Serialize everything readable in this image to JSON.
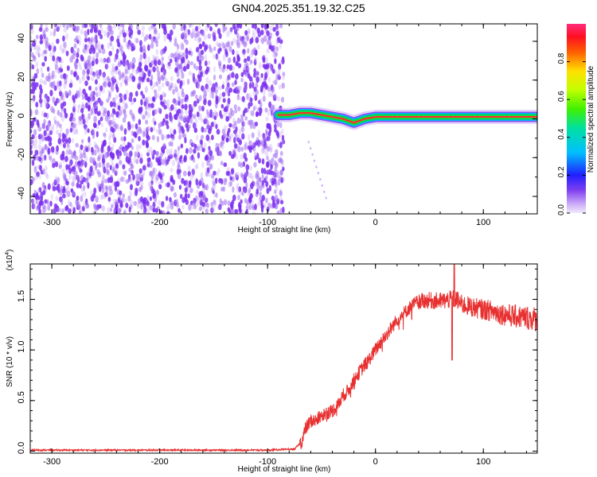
{
  "title": "GN04.2025.351.19.32.C25",
  "colors": {
    "signal_low": "#7a2cf0",
    "signal_mid": "#00d000",
    "signal_high": "#ff2020",
    "snr_line": "#e83030"
  },
  "chart_data": [
    {
      "type": "heatmap",
      "name": "spectrogram",
      "xlabel": "Height of straight line (km)",
      "ylabel": "Frequency (Hz)",
      "xlim": [
        -320,
        150
      ],
      "ylim": [
        -49,
        49
      ],
      "xticks": [
        -300,
        -200,
        -100,
        0,
        100
      ],
      "yticks": [
        -40,
        -20,
        0,
        20,
        40
      ],
      "noise_region_x": [
        -320,
        -85
      ],
      "ridge": {
        "x": [
          -90,
          -80,
          -70,
          -60,
          -50,
          -40,
          -30,
          -20,
          -10,
          0,
          20,
          40,
          60,
          80,
          100,
          120,
          140,
          150
        ],
        "y": [
          2,
          2,
          3,
          3,
          2,
          1,
          0,
          -2,
          0,
          1,
          1,
          1,
          1,
          1,
          1,
          1,
          1,
          1
        ]
      },
      "colorbar": {
        "label": "Normalized spectral amplitude",
        "range": [
          0,
          1
        ],
        "ticks": [
          0.0,
          0.2,
          0.4,
          0.6,
          0.8
        ],
        "tick_labels": [
          "0.0",
          "0.2",
          "0.4",
          "0.6",
          "0.8"
        ]
      }
    },
    {
      "type": "line",
      "name": "snr",
      "xlabel": "Height of straight line (km)",
      "ylabel": "SNR (10 * v/v)",
      "yscale_label": "(x10",
      "yscale_exponent": "4",
      "xlim": [
        -320,
        150
      ],
      "ylim": [
        -0.02,
        1.85
      ],
      "xticks": [
        -300,
        -200,
        -100,
        0,
        100
      ],
      "yticks": [
        0.0,
        0.5,
        1.0,
        1.5
      ],
      "ytick_labels": [
        "0.0",
        "0.5",
        "1.0",
        "1.5"
      ],
      "series": [
        {
          "x": [
            -320,
            -100,
            -75,
            -68,
            -65,
            -60,
            -55,
            -50,
            -45,
            -40,
            -35,
            -30,
            -25,
            -20,
            -15,
            -10,
            -5,
            0,
            5,
            10,
            15,
            20,
            25,
            30,
            35,
            40,
            50,
            60,
            70,
            75,
            80,
            90,
            100,
            110,
            120,
            130,
            140,
            150
          ],
          "y": [
            0.01,
            0.01,
            0.02,
            0.1,
            0.22,
            0.3,
            0.3,
            0.35,
            0.38,
            0.4,
            0.45,
            0.55,
            0.6,
            0.7,
            0.78,
            0.85,
            0.92,
            1.0,
            1.08,
            1.15,
            1.22,
            1.3,
            1.35,
            1.4,
            1.45,
            1.48,
            1.49,
            1.48,
            1.5,
            1.5,
            1.45,
            1.42,
            1.4,
            1.38,
            1.35,
            1.33,
            1.32,
            1.3
          ]
        }
      ]
    }
  ]
}
